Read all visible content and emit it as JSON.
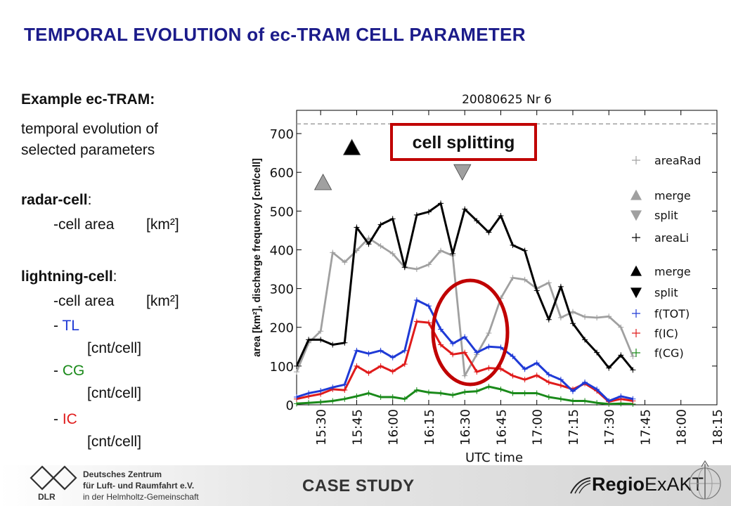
{
  "page_title": "TEMPORAL EVOLUTION of ec-TRAM CELL PARAMETER",
  "left_panel": {
    "heading": "Example ec-TRAM:",
    "subtitle_line1": "temporal evolution of",
    "subtitle_line2": "selected parameters",
    "radar_label": "radar-cell",
    "radar_colon": ":",
    "radar_item": "-cell area",
    "radar_unit": "[km²]",
    "lightning_label": "lightning-cell",
    "lightning_colon": ":",
    "lightning_item": "-cell area",
    "lightning_unit": "[km²]",
    "dash": "- ",
    "tl": "TL",
    "tl_unit": "[cnt/cell]",
    "cg": "CG",
    "cg_unit": "[cnt/cell]",
    "ic": "IC",
    "ic_unit": "[cnt/cell]",
    "colors": {
      "tl": "#1f3ad6",
      "cg": "#1a8a1a",
      "ic": "#e01b1b"
    }
  },
  "annotation": {
    "label": "cell splitting",
    "box_color": "#c00000",
    "ellipse_color": "#c00000"
  },
  "footer": {
    "case_label": "CASE STUDY",
    "dlr_abbrev": "DLR",
    "dlr_line1": "Deutsches Zentrum",
    "dlr_line2": "für Luft- und Raumfahrt e.V.",
    "dlr_line3": "in der Helmholtz-Gemeinschaft",
    "regio_part1": "Regio",
    "regio_part2": "ExAKT"
  },
  "chart_data": {
    "type": "line",
    "title": "20080625 Nr 6",
    "xlabel": "UTC time",
    "ylabel": "area [km²], discharge frequency [cnt/cell]",
    "x_ticks": [
      "15:30",
      "15:45",
      "16:00",
      "16:15",
      "16:30",
      "16:45",
      "17:00",
      "17:15",
      "17:30",
      "17:45",
      "18:00",
      "18:15"
    ],
    "xlim": [
      "15:20",
      "18:15"
    ],
    "ylim": [
      0,
      760
    ],
    "y_ticks": [
      0,
      100,
      200,
      300,
      400,
      500,
      600,
      700
    ],
    "reference_line": 725,
    "x": [
      "15:20",
      "15:25",
      "15:30",
      "15:35",
      "15:40",
      "15:45",
      "15:50",
      "15:55",
      "16:00",
      "16:05",
      "16:10",
      "16:15",
      "16:20",
      "16:25",
      "16:30",
      "16:35",
      "16:40",
      "16:45",
      "16:50",
      "16:55",
      "17:00",
      "17:05",
      "17:10",
      "17:15",
      "17:20",
      "17:25",
      "17:30",
      "17:35",
      "17:40"
    ],
    "series": [
      {
        "name": "areaRad",
        "color": "#a0a0a0",
        "values": [
          85,
          160,
          190,
          393,
          368,
          398,
          430,
          410,
          390,
          355,
          350,
          362,
          398,
          385,
          75,
          130,
          185,
          275,
          328,
          323,
          300,
          315,
          225,
          240,
          227,
          225,
          228,
          200,
          125
        ]
      },
      {
        "name": "areaLi",
        "color": "#000000",
        "values": [
          100,
          168,
          168,
          155,
          160,
          458,
          415,
          465,
          480,
          355,
          490,
          498,
          520,
          390,
          505,
          475,
          445,
          488,
          412,
          398,
          295,
          220,
          305,
          210,
          168,
          135,
          95,
          128,
          90
        ]
      },
      {
        "name": "f(TOT)",
        "color": "#1f3ad6",
        "values": [
          20,
          30,
          36,
          45,
          52,
          140,
          132,
          140,
          122,
          140,
          270,
          255,
          195,
          158,
          175,
          135,
          150,
          148,
          125,
          92,
          108,
          78,
          65,
          35,
          58,
          40,
          10,
          22,
          15
        ]
      },
      {
        "name": "f(IC)",
        "color": "#e01b1b",
        "values": [
          15,
          22,
          28,
          40,
          38,
          100,
          82,
          100,
          86,
          105,
          215,
          212,
          155,
          130,
          135,
          85,
          95,
          93,
          75,
          65,
          76,
          58,
          50,
          40,
          55,
          36,
          8,
          15,
          10
        ]
      },
      {
        "name": "f(CG)",
        "color": "#1a8a1a",
        "values": [
          3,
          5,
          7,
          10,
          15,
          22,
          30,
          20,
          20,
          15,
          38,
          32,
          30,
          25,
          33,
          35,
          47,
          40,
          30,
          30,
          30,
          20,
          15,
          10,
          10,
          5,
          2,
          3,
          2
        ]
      }
    ],
    "events": [
      {
        "series": "areaRad",
        "type": "merge",
        "x": "15:31",
        "y": 575,
        "color": "#a0a0a0"
      },
      {
        "series": "areaLi",
        "type": "merge",
        "x": "15:43",
        "y": 665,
        "color": "#000000"
      },
      {
        "series": "areaRad",
        "type": "split",
        "x": "16:29",
        "y": 600,
        "color": "#a0a0a0"
      }
    ],
    "legend": {
      "position": "right",
      "items": [
        {
          "label": "areaRad",
          "marker": "plus",
          "color": "#a0a0a0"
        },
        {
          "label": "merge",
          "marker": "triangle-up",
          "color": "#a0a0a0"
        },
        {
          "label": "split",
          "marker": "triangle-down",
          "color": "#a0a0a0"
        },
        {
          "label": "areaLi",
          "marker": "plus",
          "color": "#000000"
        },
        {
          "label": "merge",
          "marker": "triangle-up",
          "color": "#000000"
        },
        {
          "label": "split",
          "marker": "triangle-down",
          "color": "#000000"
        },
        {
          "label": "f(TOT)",
          "marker": "plus",
          "color": "#1f3ad6"
        },
        {
          "label": "f(IC)",
          "marker": "plus",
          "color": "#e01b1b"
        },
        {
          "label": "f(CG)",
          "marker": "plus",
          "color": "#1a8a1a"
        }
      ]
    }
  }
}
